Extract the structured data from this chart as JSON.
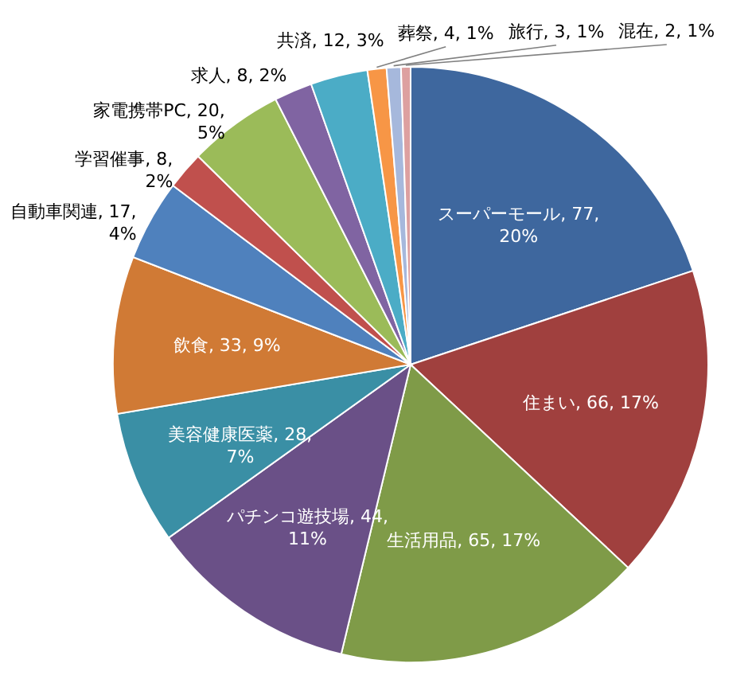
{
  "chart_data": {
    "type": "pie",
    "categories": [
      "スーパーモール",
      "住まい",
      "生活用品",
      "パチンコ遊技場",
      "美容健康医薬",
      "飲食",
      "自動車関連",
      "学習催事",
      "家電携帯PC",
      "求人",
      "共済",
      "葬祭",
      "旅行",
      "混在"
    ],
    "values": [
      77,
      66,
      65,
      44,
      28,
      33,
      17,
      8,
      20,
      8,
      12,
      4,
      3,
      2
    ],
    "value_labels": [
      "77, 20%",
      "66, 17%",
      "65, 17%",
      "44, 11%",
      "28, 7%",
      "33, 9%",
      "17, 4%",
      "8, 2%",
      "20, 5%",
      "8, 2%",
      "12, 3%",
      "4, 1%",
      "3, 1%",
      "2, 1%"
    ],
    "colors": [
      "#3e679e",
      "#a0403e",
      "#7f9b48",
      "#6a5087",
      "#3a8fa5",
      "#d07a35",
      "#4f81bd",
      "#c0504d",
      "#9bbb59",
      "#8064a2",
      "#4bacc6",
      "#f79646",
      "#a6b8dc",
      "#dda0a0"
    ]
  }
}
